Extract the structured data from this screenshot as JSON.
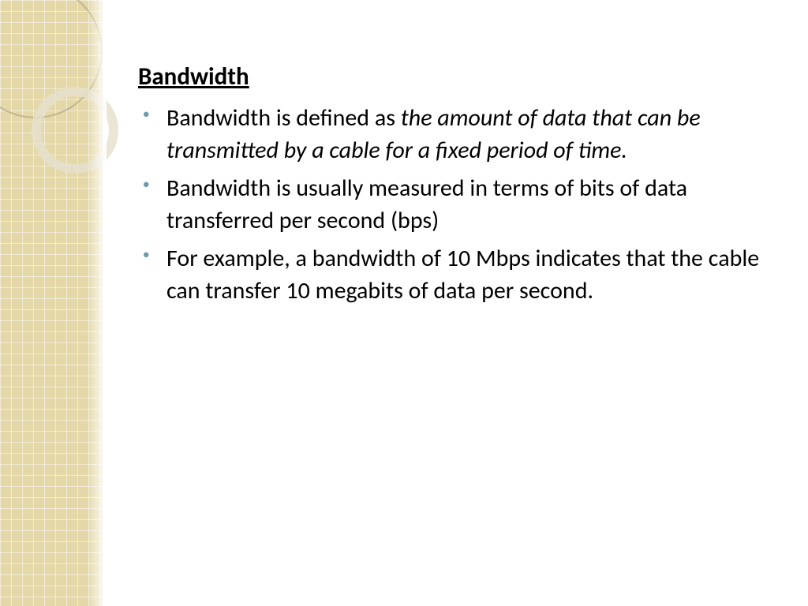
{
  "slide": {
    "title": "Bandwidth",
    "bullets": [
      {
        "lead": "Bandwidth  is  defined as  ",
        "italic": "the  amount of data that can be transmitted by a cable for a fixed period of time.",
        "tail": ""
      },
      {
        "lead": "Bandwidth is usually measured in terms of bits of data transferred per second (bps)",
        "italic": "",
        "tail": ""
      },
      {
        "lead": "For example, a bandwidth of 10 Mbps indicates that the cable can transfer 10 megabits of data per second.",
        "italic": "",
        "tail": ""
      }
    ]
  },
  "style": {
    "sidebar_color": "#e4d7a8",
    "grid_line_color": "rgba(255,255,255,0.5)",
    "bullet_color": "#6f9aa8",
    "title_fontsize": 31,
    "body_fontsize": 30,
    "text_color": "#000000",
    "background_color": "#ffffff",
    "ring1_color": "rgba(160,150,110,0.5)",
    "ring2_color": "rgba(230,225,205,0.85)"
  }
}
